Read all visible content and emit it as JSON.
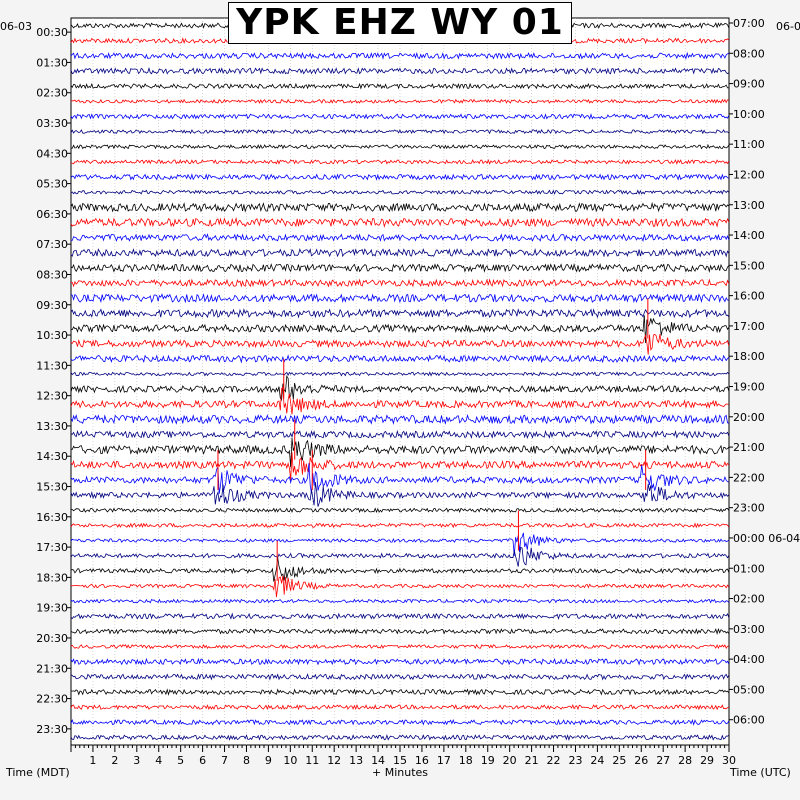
{
  "header": {
    "title": "YPK EHZ WY 01"
  },
  "labels": {
    "date_left": "06-03",
    "date_right": "06-0",
    "xlabel": "+ Minutes",
    "left_axis_label": "Time (MDT)",
    "right_axis_label": "Time (UTC)"
  },
  "colors": {
    "background": "#ffffff",
    "trace_cycle": [
      "#000000",
      "#ff0000",
      "#0000ff",
      "#000080"
    ],
    "event_marker": "#ff0000"
  },
  "chart_data": {
    "type": "seismogram-helicorder",
    "title": "YPK EHZ WY 01",
    "xlabel": "+ Minutes",
    "xlim": [
      0,
      30
    ],
    "x_ticks": [
      1,
      2,
      3,
      4,
      5,
      6,
      7,
      8,
      9,
      10,
      11,
      12,
      13,
      14,
      15,
      16,
      17,
      18,
      19,
      20,
      21,
      22,
      23,
      24,
      25,
      26,
      27,
      28,
      29,
      30
    ],
    "traces_per_hour": 2,
    "trace_minutes": 30,
    "left_time_labels": [
      "00:30",
      "01:30",
      "02:30",
      "03:30",
      "04:30",
      "05:30",
      "06:30",
      "07:30",
      "08:30",
      "09:30",
      "10:30",
      "11:30",
      "12:30",
      "13:30",
      "14:30",
      "15:30",
      "16:30",
      "17:30",
      "18:30",
      "19:30",
      "20:30",
      "21:30",
      "22:30",
      "23:30"
    ],
    "right_time_labels": [
      "07:00",
      "08:00",
      "09:00",
      "10:00",
      "11:00",
      "12:00",
      "13:00",
      "14:00",
      "15:00",
      "16:00",
      "17:00",
      "18:00",
      "19:00",
      "20:00",
      "21:00",
      "22:00",
      "23:00",
      "00:00 06-04",
      "01:00",
      "02:00",
      "03:00",
      "04:00",
      "05:00",
      "06:00"
    ],
    "events": [
      {
        "label_row": 12,
        "minute": 9.7
      },
      {
        "label_row": 14,
        "minute": 10.2
      },
      {
        "label_row": 15,
        "minute": 6.7
      },
      {
        "label_row": 15,
        "minute": 11.0
      },
      {
        "label_row": 15,
        "minute": 26.2
      },
      {
        "label_row": 17,
        "minute": 20.4
      },
      {
        "label_row": 18,
        "minute": 9.4
      },
      {
        "label_row": 10,
        "minute": 26.3
      }
    ]
  }
}
